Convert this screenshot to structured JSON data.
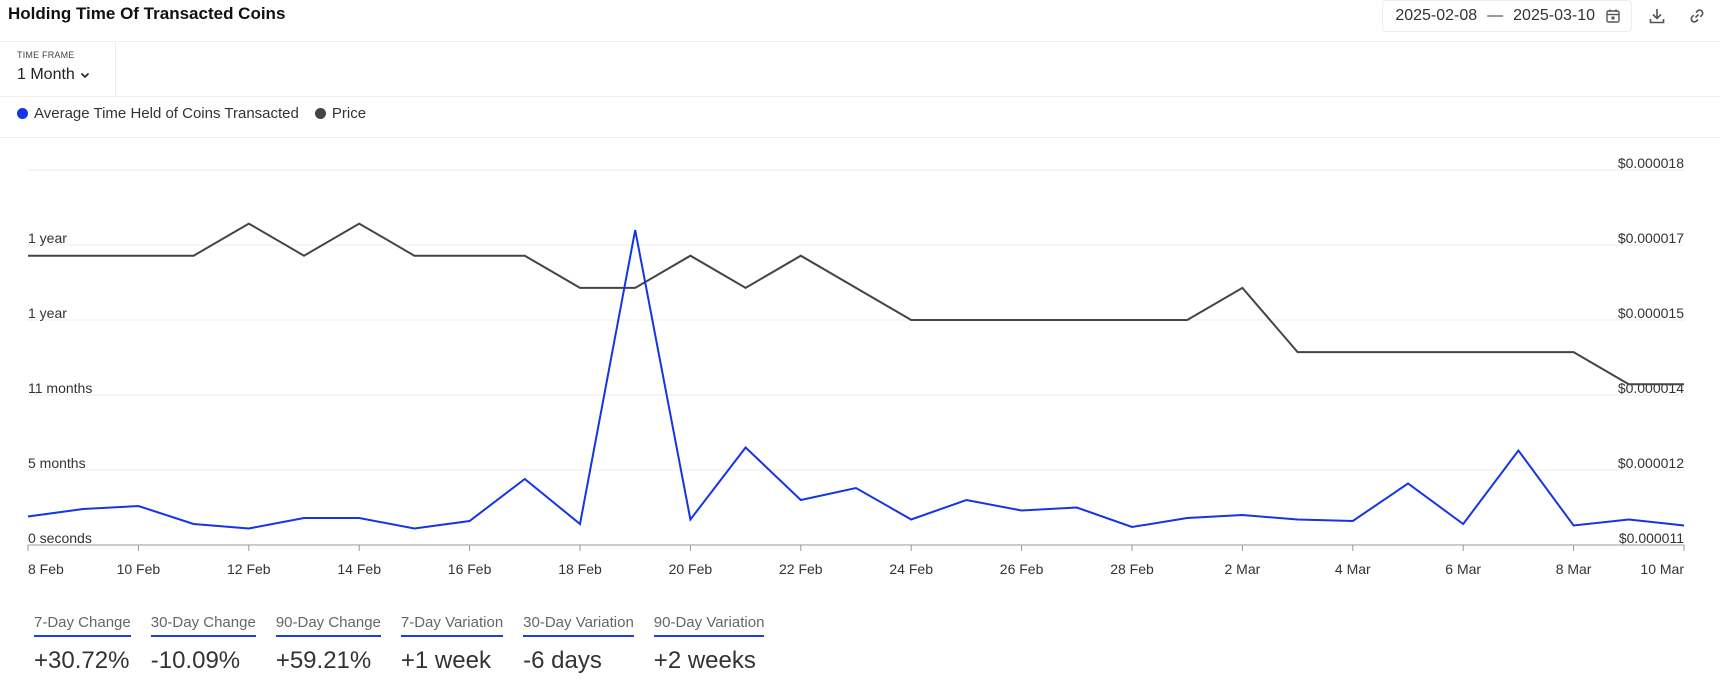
{
  "header": {
    "title": "Holding Time Of Transacted Coins",
    "date_from": "2025-02-08",
    "date_sep": "—",
    "date_to": "2025-03-10"
  },
  "icons": {
    "calendar": "calendar-icon",
    "download": "download-icon",
    "link": "link-icon",
    "chevron": "chevron-down-icon"
  },
  "timeframe": {
    "label": "TIME FRAME",
    "value": "1 Month"
  },
  "legend": [
    {
      "label": "Average Time Held of Coins Transacted",
      "color": "#1434e8"
    },
    {
      "label": "Price",
      "color": "#444444"
    }
  ],
  "chart_data": {
    "type": "line",
    "x": [
      "8 Feb",
      "9 Feb",
      "10 Feb",
      "11 Feb",
      "12 Feb",
      "13 Feb",
      "14 Feb",
      "15 Feb",
      "16 Feb",
      "17 Feb",
      "18 Feb",
      "19 Feb",
      "20 Feb",
      "21 Feb",
      "22 Feb",
      "23 Feb",
      "24 Feb",
      "25 Feb",
      "26 Feb",
      "27 Feb",
      "28 Feb",
      "1 Mar",
      "2 Mar",
      "3 Mar",
      "4 Mar",
      "5 Mar",
      "6 Mar",
      "7 Mar",
      "8 Mar",
      "9 Mar",
      "10 Mar"
    ],
    "x_ticks": [
      "8 Feb",
      "10 Feb",
      "12 Feb",
      "14 Feb",
      "16 Feb",
      "18 Feb",
      "20 Feb",
      "22 Feb",
      "24 Feb",
      "26 Feb",
      "28 Feb",
      "2 Mar",
      "4 Mar",
      "6 Mar",
      "8 Mar",
      "10 Mar"
    ],
    "y_left_ticks": [
      "0 seconds",
      "5 months",
      "11 months",
      "1 year",
      "1 year"
    ],
    "y_right_ticks": [
      "$0.000011",
      "$0.000012",
      "$0.000014",
      "$0.000015",
      "$0.000017",
      "$0.000018"
    ],
    "y_left_range_months": [
      0,
      25
    ],
    "y_right_range": [
      1.1e-05,
      1.8e-05
    ],
    "series": [
      {
        "name": "Average Time Held of Coins Transacted",
        "axis": "left",
        "unit": "months",
        "color": "#1434e8",
        "values": [
          1.9,
          2.4,
          2.6,
          1.4,
          1.1,
          1.8,
          1.8,
          1.1,
          1.6,
          4.4,
          1.4,
          21.0,
          1.7,
          6.5,
          3.0,
          3.8,
          1.7,
          3.0,
          2.3,
          2.5,
          1.2,
          1.8,
          2.0,
          1.7,
          1.6,
          4.1,
          1.4,
          6.3,
          1.3,
          1.7,
          1.3
        ]
      },
      {
        "name": "Price",
        "axis": "right",
        "unit": "USD",
        "color": "#444444",
        "values": [
          1.64e-05,
          1.64e-05,
          1.64e-05,
          1.64e-05,
          1.7e-05,
          1.64e-05,
          1.7e-05,
          1.64e-05,
          1.64e-05,
          1.64e-05,
          1.58e-05,
          1.58e-05,
          1.64e-05,
          1.58e-05,
          1.64e-05,
          1.58e-05,
          1.52e-05,
          1.52e-05,
          1.52e-05,
          1.52e-05,
          1.52e-05,
          1.52e-05,
          1.58e-05,
          1.46e-05,
          1.46e-05,
          1.46e-05,
          1.46e-05,
          1.46e-05,
          1.46e-05,
          1.4e-05,
          1.4e-05
        ]
      }
    ],
    "grid": true,
    "legend_position": "top-left"
  },
  "stats": [
    {
      "label": "7-Day Change",
      "value": "+30.72%"
    },
    {
      "label": "30-Day Change",
      "value": "-10.09%"
    },
    {
      "label": "90-Day Change",
      "value": "+59.21%"
    },
    {
      "label": "7-Day Variation",
      "value": "+1 week"
    },
    {
      "label": "30-Day Variation",
      "value": "-6 days"
    },
    {
      "label": "90-Day Variation",
      "value": "+2 weeks"
    }
  ]
}
